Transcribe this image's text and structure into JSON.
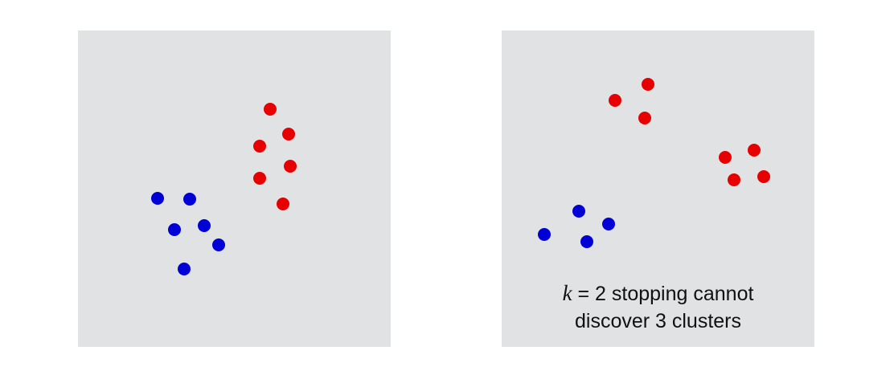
{
  "colors": {
    "panel_background": "#e1e2e4",
    "cluster_a": "#e60000",
    "cluster_b": "#0000d6"
  },
  "panels": [
    {
      "id": "left",
      "points": [
        {
          "cluster": "cluster_a"
        },
        {
          "cluster": "cluster_a"
        },
        {
          "cluster": "cluster_a"
        },
        {
          "cluster": "cluster_a"
        },
        {
          "cluster": "cluster_a"
        },
        {
          "cluster": "cluster_a"
        },
        {
          "cluster": "cluster_b"
        },
        {
          "cluster": "cluster_b"
        },
        {
          "cluster": "cluster_b"
        },
        {
          "cluster": "cluster_b"
        },
        {
          "cluster": "cluster_b"
        },
        {
          "cluster": "cluster_b"
        }
      ]
    },
    {
      "id": "right",
      "points": [
        {
          "cluster": "cluster_a"
        },
        {
          "cluster": "cluster_a"
        },
        {
          "cluster": "cluster_a"
        },
        {
          "cluster": "cluster_a"
        },
        {
          "cluster": "cluster_a"
        },
        {
          "cluster": "cluster_a"
        },
        {
          "cluster": "cluster_a"
        },
        {
          "cluster": "cluster_b"
        },
        {
          "cluster": "cluster_b"
        },
        {
          "cluster": "cluster_b"
        },
        {
          "cluster": "cluster_b"
        }
      ]
    }
  ],
  "caption": {
    "variable": "k",
    "line1_rest": " = 2 stopping cannot",
    "line2": "discover 3 clusters"
  }
}
